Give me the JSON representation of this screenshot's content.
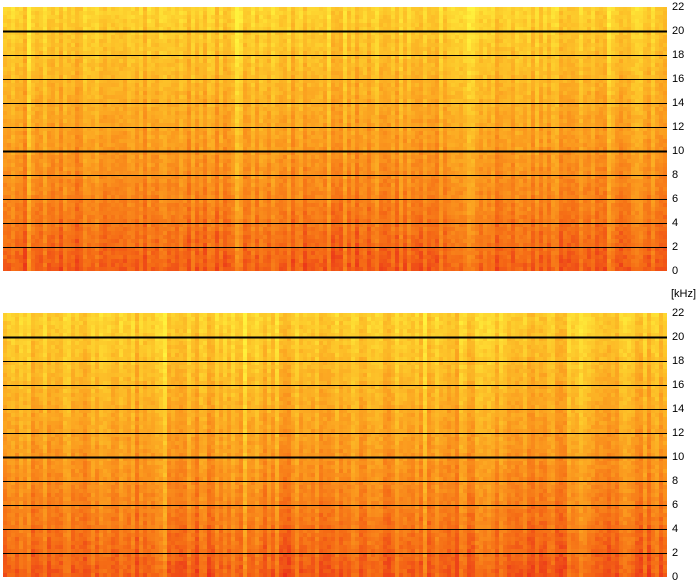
{
  "chart_data": [
    {
      "type": "heatmap",
      "title": "",
      "xlabel": "",
      "ylabel": "",
      "yunit": "[kHz]",
      "ylim": [
        0,
        22
      ],
      "yticks": [
        0,
        2,
        4,
        6,
        8,
        10,
        12,
        14,
        16,
        18,
        20,
        22
      ],
      "bold_gridlines": [
        10,
        20
      ],
      "grid": true,
      "colormap": [
        "#e8281a",
        "#f56a15",
        "#fb9a1e",
        "#fdc72a",
        "#fff23c"
      ],
      "channel": "top"
    },
    {
      "type": "heatmap",
      "title": "",
      "xlabel": "",
      "ylabel": "",
      "yunit": "[kHz]",
      "ylim": [
        0,
        22
      ],
      "yticks": [
        0,
        2,
        4,
        6,
        8,
        10,
        12,
        14,
        16,
        18,
        20,
        22
      ],
      "bold_gridlines": [
        10,
        20
      ],
      "grid": true,
      "colormap": [
        "#e8281a",
        "#f56a15",
        "#fb9a1e",
        "#fdc72a",
        "#fff23c"
      ],
      "channel": "bottom"
    }
  ],
  "axis": {
    "unit": "[kHz]",
    "tick_labels": [
      "22",
      "20",
      "18",
      "16",
      "14",
      "12",
      "10",
      "8",
      "6",
      "4",
      "2",
      "0"
    ]
  }
}
